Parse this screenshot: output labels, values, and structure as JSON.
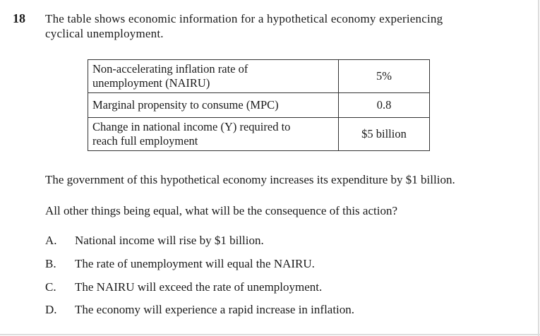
{
  "question": {
    "number": "18",
    "stem_line1": "The table shows economic information for a hypothetical economy experiencing",
    "stem_line2": "cyclical unemployment."
  },
  "table": {
    "rows": [
      {
        "label_line1": "Non-accelerating inflation rate of",
        "label_line2": "unemployment (NAIRU)",
        "value": "5%"
      },
      {
        "label_line1": "Marginal propensity to consume (MPC)",
        "label_line2": "",
        "value": "0.8"
      },
      {
        "label_line1": "Change in national income (Y) required to",
        "label_line2": "reach full employment",
        "value": "$5 billion"
      }
    ]
  },
  "paragraphs": {
    "p1": "The government of this hypothetical economy increases its expenditure by $1 billion.",
    "p2": "All other things being equal, what will be the consequence of this action?"
  },
  "options": [
    {
      "letter": "A.",
      "text": "National income will rise by $1 billion."
    },
    {
      "letter": "B.",
      "text": "The rate of unemployment will equal the NAIRU."
    },
    {
      "letter": "C.",
      "text": "The NAIRU will exceed the rate of unemployment."
    },
    {
      "letter": "D.",
      "text": "The economy will experience a rapid increase in inflation."
    }
  ]
}
